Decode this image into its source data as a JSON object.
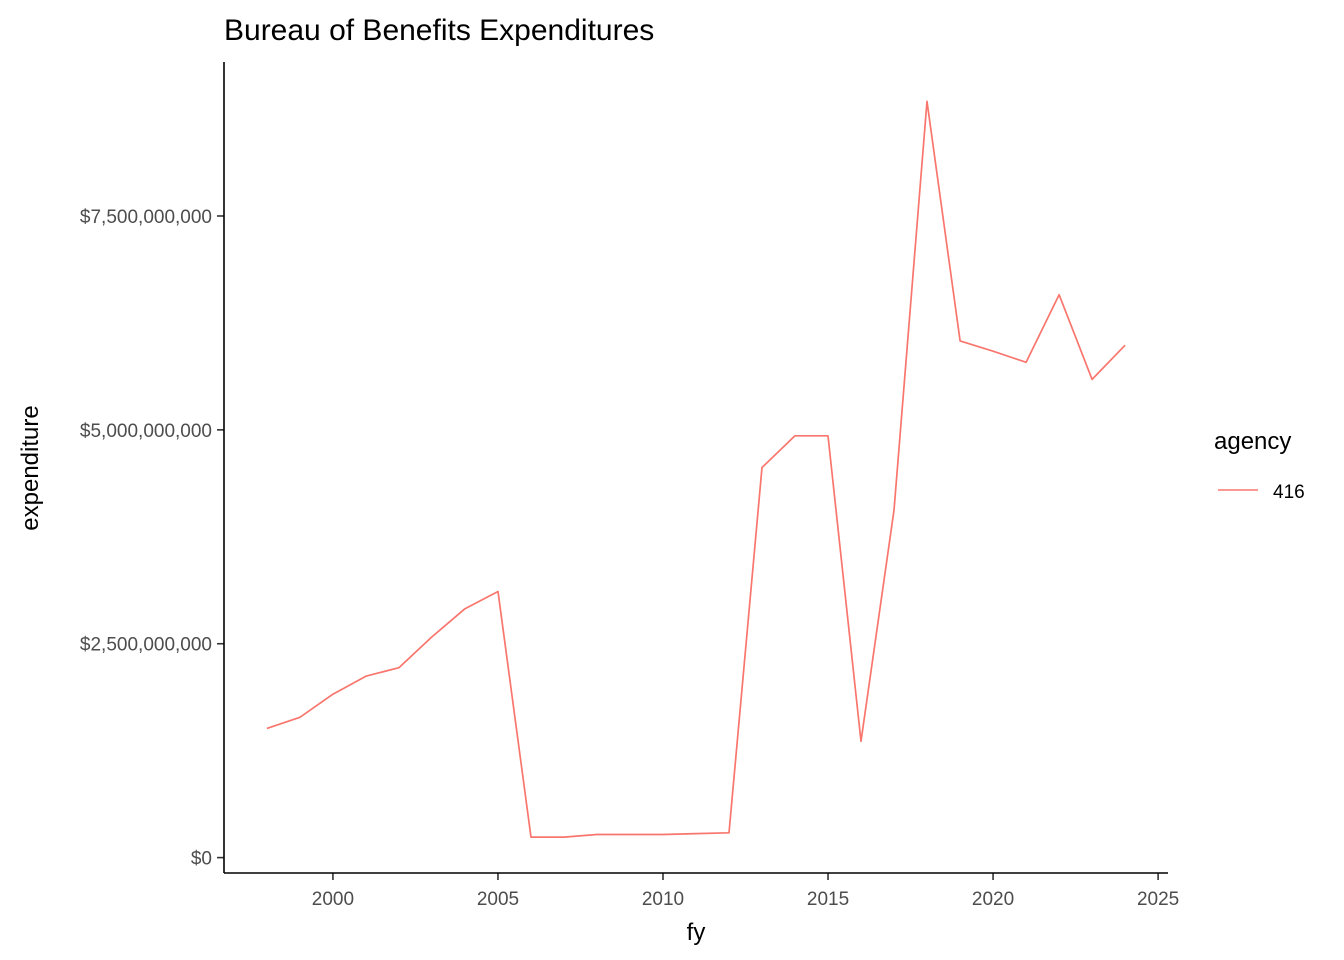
{
  "chart_data": {
    "type": "line",
    "title": "Bureau of Benefits Expenditures",
    "xlabel": "fy",
    "ylabel": "expenditure",
    "xlim": [
      1996.7,
      2025.3
    ],
    "ylim": [
      -180000000,
      9300000000
    ],
    "x_ticks": [
      2000,
      2005,
      2010,
      2015,
      2020,
      2025
    ],
    "x_tick_labels": [
      "2000",
      "2005",
      "2010",
      "2015",
      "2020",
      "2025"
    ],
    "y_ticks": [
      0,
      2500000000,
      5000000000,
      7500000000
    ],
    "y_tick_labels": [
      "$0",
      "$2,500,000,000",
      "$5,000,000,000",
      "$7,500,000,000"
    ],
    "grid": false,
    "legend": {
      "title": "agency",
      "placement": "right"
    },
    "series": [
      {
        "name": "416",
        "color": "#F8766D",
        "x": [
          1998,
          1999,
          2000,
          2001,
          2002,
          2003,
          2004,
          2005,
          2006,
          2007,
          2008,
          2009,
          2010,
          2011,
          2012,
          2013,
          2014,
          2015,
          2016,
          2017,
          2018,
          2019,
          2020,
          2021,
          2022,
          2023,
          2024
        ],
        "y": [
          1510000000,
          1640000000,
          1910000000,
          2120000000,
          2220000000,
          2580000000,
          2910000000,
          3110000000,
          240000000,
          240000000,
          270000000,
          270000000,
          270000000,
          280000000,
          290000000,
          4560000000,
          4930000000,
          4930000000,
          1360000000,
          4060000000,
          8840000000,
          6040000000,
          5920000000,
          5790000000,
          6580000000,
          5590000000,
          5990000000
        ]
      }
    ]
  }
}
